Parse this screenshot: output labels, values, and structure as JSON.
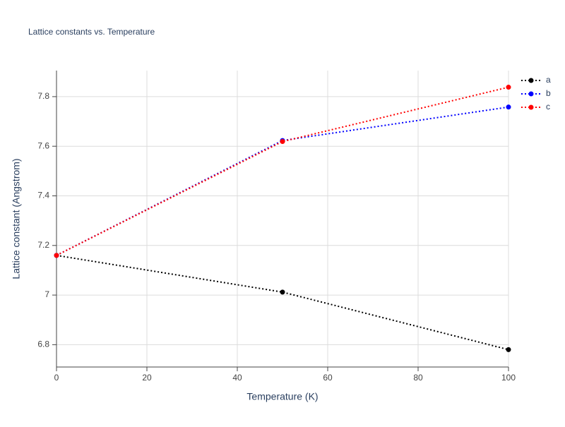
{
  "chart_data": {
    "type": "line",
    "title": "Lattice constants vs. Temperature",
    "x_label": "Temperature (K)",
    "y_label": "Lattice constant (Angstrom)",
    "x": [
      0,
      50,
      100
    ],
    "series": [
      {
        "name": "a",
        "color": "#000000",
        "values": [
          7.16,
          7.012,
          6.78
        ]
      },
      {
        "name": "b",
        "color": "#0000ff",
        "values": [
          7.16,
          7.623,
          7.758
        ]
      },
      {
        "name": "c",
        "color": "#ff0000",
        "values": [
          7.16,
          7.619,
          7.838
        ]
      }
    ],
    "xlim": [
      0,
      100
    ],
    "xticks": [
      0,
      20,
      40,
      60,
      80,
      100
    ],
    "ylim": [
      6.71,
      7.905
    ],
    "yticks": [
      6.8,
      7,
      7.2,
      7.4,
      7.6,
      7.8
    ],
    "grid": true,
    "legend": "right"
  }
}
